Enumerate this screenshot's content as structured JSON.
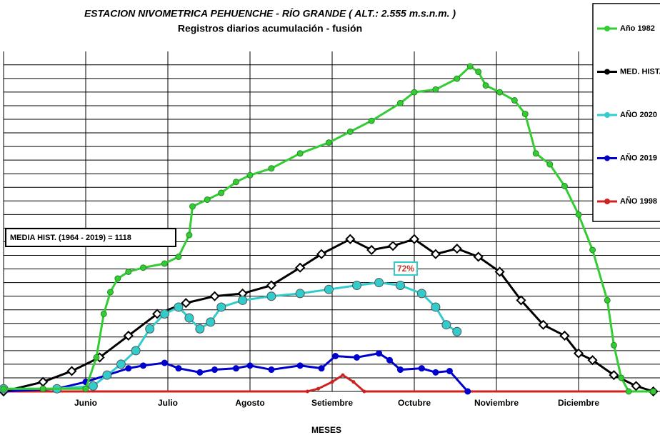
{
  "chart_data": {
    "type": "line",
    "title": "ESTACION NIVOMETRICA PEHUENCHE  - RÍO GRANDE ( ALT.: 2.555 m.s.n.m. )",
    "subtitle": "Registros diarios acumulación  - fusión",
    "x_label": "MESES",
    "annotations": [
      {
        "text": "MEDIA HIST. (1964 - 2019) = 1118"
      },
      {
        "text": "72%",
        "color": "#c0392b"
      }
    ],
    "xlim": [
      -1,
      7
    ],
    "xticks": [
      {
        "value": 0,
        "label": "Junio"
      },
      {
        "value": 1,
        "label": "Julio"
      },
      {
        "value": 2,
        "label": "Agosto"
      },
      {
        "value": 3,
        "label": "Setiembre"
      },
      {
        "value": 4,
        "label": "Octubre"
      },
      {
        "value": 5,
        "label": "Noviembre"
      },
      {
        "value": 6,
        "label": "Diciembre"
      }
    ],
    "ylim": [
      0,
      2500
    ],
    "grid": true,
    "series": [
      {
        "name": "Año 1982",
        "color": "#33cc33",
        "x": [
          -1,
          -0.52,
          0,
          0.13,
          0.22,
          0.3,
          0.39,
          0.52,
          0.7,
          0.96,
          1.13,
          1.26,
          1.3,
          1.48,
          1.65,
          1.83,
          2,
          2.26,
          2.61,
          2.96,
          3.22,
          3.48,
          3.83,
          4,
          4.26,
          4.52,
          4.68,
          4.78,
          4.87,
          5.04,
          5.22,
          5.35,
          5.48,
          5.65,
          5.83,
          6,
          6.17,
          6.35,
          6.43,
          6.52,
          6.61,
          6.91
        ],
        "values": [
          20,
          20,
          20,
          250,
          570,
          730,
          830,
          880,
          910,
          940,
          990,
          1150,
          1360,
          1410,
          1460,
          1540,
          1590,
          1640,
          1750,
          1830,
          1910,
          1990,
          2120,
          2200,
          2220,
          2300,
          2390,
          2350,
          2250,
          2200,
          2140,
          2040,
          1750,
          1670,
          1510,
          1300,
          1040,
          670,
          340,
          100,
          0,
          0
        ]
      },
      {
        "name": "MED. HIST.",
        "color": "#000000",
        "x": [
          -1,
          -0.52,
          -0.17,
          0.17,
          0.52,
          0.87,
          1.22,
          1.57,
          1.91,
          2.26,
          2.61,
          2.87,
          3.22,
          3.48,
          3.74,
          4,
          4.26,
          4.52,
          4.78,
          5.04,
          5.3,
          5.57,
          5.83,
          6,
          6.17,
          6.43,
          6.7,
          6.91
        ],
        "values": [
          0,
          70,
          150,
          250,
          410,
          570,
          650,
          700,
          720,
          780,
          910,
          1010,
          1120,
          1040,
          1070,
          1120,
          1010,
          1050,
          990,
          880,
          670,
          490,
          410,
          280,
          230,
          120,
          40,
          0
        ]
      },
      {
        "name": "AÑO 2020",
        "color": "#33cccc",
        "x": [
          -1,
          -0.35,
          0.09,
          0.26,
          0.43,
          0.61,
          0.78,
          0.96,
          1.13,
          1.26,
          1.39,
          1.52,
          1.65,
          1.91,
          2.26,
          2.61,
          2.96,
          3.3,
          3.57,
          3.83,
          4.09,
          4.26,
          4.39,
          4.52
        ],
        "values": [
          20,
          20,
          40,
          120,
          200,
          300,
          460,
          570,
          620,
          540,
          460,
          510,
          620,
          670,
          700,
          720,
          750,
          780,
          800,
          780,
          720,
          620,
          490,
          440
        ]
      },
      {
        "name": "AÑO 2019",
        "color": "#0000cc",
        "x": [
          -1,
          -0.35,
          0,
          0.26,
          0.52,
          0.7,
          0.96,
          1.13,
          1.39,
          1.57,
          1.83,
          2,
          2.26,
          2.61,
          2.87,
          3.04,
          3.3,
          3.57,
          3.7,
          3.83,
          4.09,
          4.26,
          4.43,
          4.65
        ],
        "values": [
          0,
          20,
          70,
          120,
          170,
          190,
          210,
          170,
          140,
          160,
          170,
          190,
          160,
          190,
          170,
          260,
          250,
          280,
          230,
          160,
          170,
          140,
          150,
          0
        ]
      },
      {
        "name": "AÑO 1998",
        "color": "#cc2222",
        "x": [
          -1,
          2.7,
          2.83,
          3,
          3.13,
          3.26,
          3.39,
          6.91
        ],
        "values": [
          0,
          0,
          20,
          70,
          120,
          70,
          0,
          0
        ]
      }
    ]
  }
}
